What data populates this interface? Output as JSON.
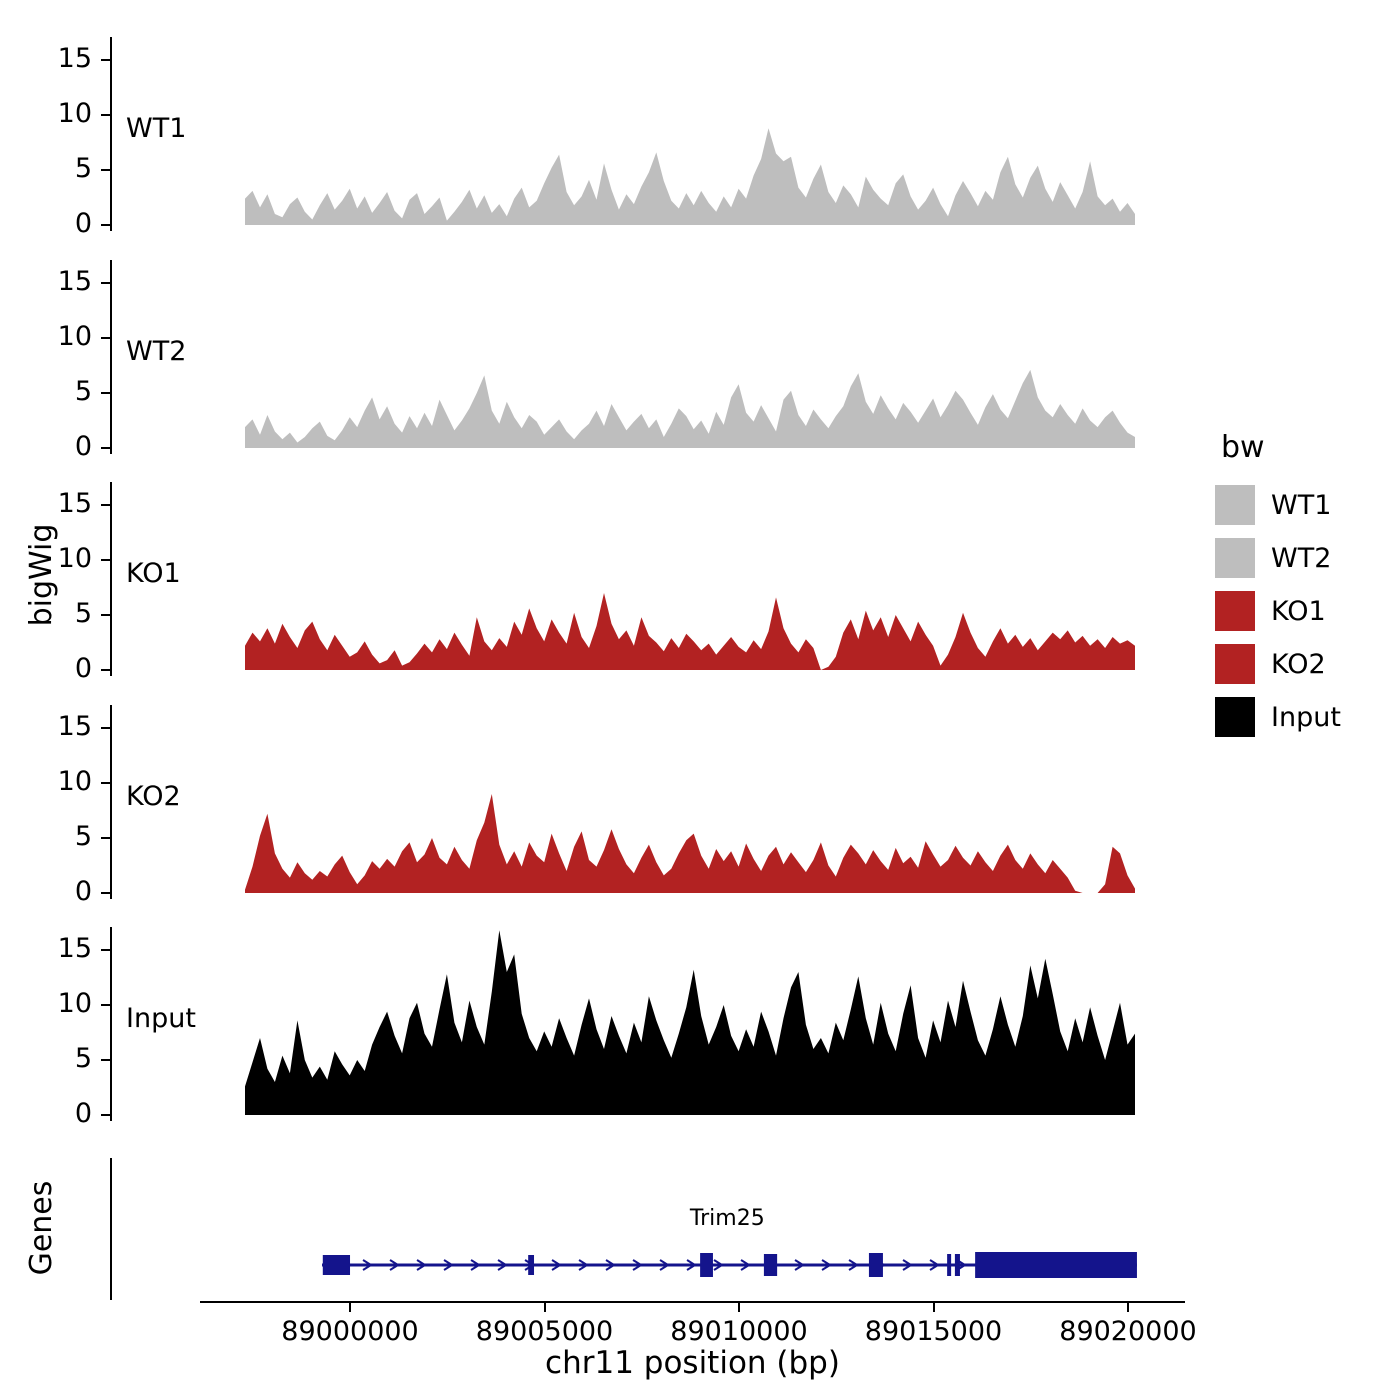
{
  "y_axis_title": "bigWig",
  "genes_axis_title": "Genes",
  "x_axis": {
    "title": "chr11 position (bp)",
    "ticks": [
      89000000,
      89005000,
      89010000,
      89015000,
      89020000
    ],
    "tick_labels": [
      "89000000",
      "89005000",
      "89010000",
      "89015000",
      "89020000"
    ]
  },
  "legend": {
    "title": "bw",
    "items": [
      {
        "label": "WT1",
        "color": "#BEBEBE"
      },
      {
        "label": "WT2",
        "color": "#BEBEBE"
      },
      {
        "label": "KO1",
        "color": "#B22222"
      },
      {
        "label": "KO2",
        "color": "#B22222"
      },
      {
        "label": "Input",
        "color": "#000000"
      }
    ]
  },
  "chart_data": {
    "type": "area",
    "title": "",
    "xlabel": "chr11 position (bp)",
    "ylabel": "bigWig",
    "x_range_bp": [
      88997300,
      89020180
    ],
    "y_ticks": [
      0,
      5,
      10,
      15
    ],
    "ylim": [
      0,
      17
    ],
    "grid": false,
    "legend_position": "right",
    "tracks": [
      {
        "name": "WT1",
        "color": "#BEBEBE",
        "values": [
          2.4,
          3.1,
          1.6,
          2.8,
          1.0,
          0.7,
          1.9,
          2.5,
          1.2,
          0.5,
          1.8,
          2.9,
          1.4,
          2.2,
          3.3,
          1.5,
          2.6,
          1.1,
          2.0,
          3.0,
          1.3,
          0.6,
          2.3,
          2.9,
          1.0,
          1.7,
          2.5,
          0.4,
          1.2,
          2.1,
          3.2,
          1.5,
          2.7,
          1.1,
          1.9,
          0.8,
          2.4,
          3.4,
          1.6,
          2.2,
          3.8,
          5.2,
          6.4,
          3.0,
          1.8,
          2.6,
          4.1,
          2.3,
          5.6,
          3.2,
          1.4,
          2.8,
          1.9,
          3.5,
          4.8,
          6.6,
          4.0,
          2.2,
          1.5,
          2.9,
          1.8,
          3.1,
          2.0,
          1.2,
          2.6,
          1.6,
          3.3,
          2.4,
          4.5,
          6.0,
          8.8,
          6.5,
          5.8,
          6.2,
          3.4,
          2.5,
          4.2,
          5.5,
          3.0,
          2.0,
          3.6,
          2.8,
          1.6,
          4.4,
          3.2,
          2.4,
          1.8,
          3.8,
          4.6,
          2.6,
          1.4,
          2.2,
          3.4,
          1.9,
          0.8,
          2.7,
          4.0,
          2.9,
          1.7,
          3.1,
          2.3,
          4.8,
          6.2,
          3.7,
          2.5,
          4.3,
          5.4,
          3.3,
          2.1,
          3.9,
          2.7,
          1.5,
          3.0,
          5.8,
          2.6,
          1.8,
          2.4,
          1.2,
          2.0,
          1.0
        ]
      },
      {
        "name": "WT2",
        "color": "#BEBEBE",
        "values": [
          1.9,
          2.6,
          1.2,
          3.0,
          1.5,
          0.8,
          1.4,
          0.5,
          1.0,
          1.8,
          2.4,
          1.1,
          0.7,
          1.6,
          2.8,
          1.9,
          3.4,
          4.6,
          2.6,
          3.8,
          2.2,
          1.4,
          2.9,
          1.8,
          3.2,
          2.0,
          4.4,
          3.0,
          1.6,
          2.5,
          3.6,
          5.0,
          6.6,
          3.4,
          2.2,
          4.2,
          2.8,
          1.8,
          3.0,
          2.4,
          1.2,
          1.9,
          2.6,
          1.5,
          0.8,
          1.6,
          2.2,
          3.4,
          2.0,
          4.0,
          2.8,
          1.6,
          2.4,
          3.1,
          1.8,
          2.6,
          1.0,
          2.2,
          3.6,
          2.9,
          1.7,
          2.5,
          1.3,
          3.3,
          2.1,
          4.6,
          5.8,
          3.2,
          2.4,
          3.9,
          2.7,
          1.5,
          4.4,
          5.2,
          3.0,
          2.0,
          3.5,
          2.6,
          1.8,
          2.9,
          3.8,
          5.6,
          6.8,
          4.2,
          3.1,
          4.8,
          3.6,
          2.6,
          4.1,
          3.3,
          2.3,
          3.4,
          4.5,
          2.8,
          3.9,
          5.2,
          4.4,
          3.2,
          2.1,
          3.7,
          4.9,
          3.5,
          2.7,
          4.3,
          5.9,
          7.1,
          4.6,
          3.4,
          2.8,
          4.0,
          3.0,
          2.2,
          3.6,
          2.5,
          1.9,
          2.8,
          3.4,
          2.3,
          1.4,
          1.0
        ]
      },
      {
        "name": "KO1",
        "color": "#B22222",
        "values": [
          2.2,
          3.4,
          2.6,
          3.8,
          2.4,
          4.2,
          3.0,
          2.0,
          3.6,
          4.4,
          2.8,
          1.8,
          3.2,
          2.2,
          1.2,
          1.6,
          2.6,
          1.4,
          0.6,
          0.9,
          1.8,
          0.4,
          0.7,
          1.5,
          2.4,
          1.6,
          2.8,
          1.9,
          3.4,
          2.3,
          1.3,
          4.8,
          2.6,
          1.8,
          2.9,
          2.1,
          4.4,
          3.2,
          5.6,
          3.8,
          2.6,
          4.6,
          3.4,
          2.4,
          5.2,
          3.0,
          2.0,
          4.0,
          7.0,
          4.2,
          2.8,
          3.6,
          2.2,
          4.8,
          3.1,
          2.5,
          1.7,
          2.9,
          2.0,
          3.3,
          2.6,
          1.8,
          2.4,
          1.4,
          2.2,
          3.0,
          2.1,
          1.6,
          2.7,
          1.9,
          3.5,
          6.6,
          3.8,
          2.4,
          1.6,
          2.8,
          2.0,
          0.0,
          0.3,
          1.2,
          3.4,
          4.6,
          2.8,
          5.4,
          3.6,
          4.8,
          3.0,
          5.0,
          3.8,
          2.6,
          4.4,
          3.2,
          2.2,
          0.4,
          1.4,
          3.0,
          5.2,
          3.4,
          2.0,
          1.2,
          2.6,
          3.8,
          2.4,
          3.2,
          2.1,
          2.9,
          1.8,
          2.6,
          3.4,
          2.8,
          3.6,
          2.5,
          3.1,
          2.2,
          2.8,
          2.0,
          3.0,
          2.4,
          2.7,
          2.2
        ]
      },
      {
        "name": "KO2",
        "color": "#B22222",
        "values": [
          0.3,
          2.4,
          5.2,
          7.2,
          3.6,
          2.2,
          1.4,
          2.8,
          1.8,
          1.2,
          2.0,
          1.5,
          2.6,
          3.4,
          1.9,
          0.8,
          1.6,
          2.9,
          2.2,
          3.1,
          2.4,
          3.8,
          4.6,
          2.8,
          3.5,
          5.0,
          3.2,
          2.6,
          4.2,
          3.0,
          2.2,
          4.8,
          6.4,
          9.0,
          4.4,
          2.6,
          3.8,
          2.4,
          4.6,
          3.4,
          2.8,
          5.4,
          3.6,
          2.0,
          4.2,
          5.6,
          3.0,
          2.4,
          3.9,
          5.8,
          4.0,
          2.6,
          1.8,
          3.2,
          4.4,
          2.8,
          1.6,
          2.2,
          3.6,
          4.8,
          5.4,
          3.4,
          2.2,
          4.0,
          2.9,
          3.8,
          2.4,
          4.5,
          3.1,
          2.0,
          3.4,
          4.2,
          2.6,
          3.7,
          2.8,
          1.9,
          3.0,
          4.6,
          2.5,
          1.5,
          3.2,
          4.4,
          3.6,
          2.6,
          3.9,
          2.9,
          2.1,
          4.1,
          2.7,
          3.3,
          2.3,
          4.7,
          3.5,
          2.4,
          3.0,
          4.3,
          3.2,
          2.5,
          3.8,
          2.8,
          2.0,
          3.4,
          4.4,
          3.0,
          2.2,
          3.6,
          2.6,
          1.8,
          3.0,
          2.2,
          1.4,
          0.2,
          0.0,
          0.0,
          0.0,
          0.8,
          4.2,
          3.6,
          1.6,
          0.4
        ]
      },
      {
        "name": "Input",
        "color": "#000000",
        "values": [
          2.6,
          4.8,
          7.0,
          4.2,
          3.0,
          5.4,
          3.8,
          8.6,
          5.0,
          3.4,
          4.4,
          3.2,
          5.8,
          4.6,
          3.6,
          5.0,
          4.0,
          6.4,
          8.0,
          9.4,
          7.2,
          5.6,
          8.8,
          10.2,
          7.4,
          6.2,
          9.6,
          12.8,
          8.4,
          6.6,
          10.4,
          8.0,
          6.4,
          11.2,
          16.8,
          13.0,
          14.6,
          9.2,
          7.0,
          5.8,
          7.6,
          6.2,
          8.8,
          7.0,
          5.4,
          8.2,
          10.6,
          7.8,
          6.0,
          9.0,
          7.2,
          5.6,
          8.4,
          6.6,
          10.8,
          8.6,
          6.8,
          5.2,
          7.4,
          9.8,
          13.2,
          9.0,
          6.4,
          8.0,
          10.0,
          7.2,
          5.8,
          7.8,
          6.2,
          9.4,
          7.6,
          5.4,
          8.8,
          11.6,
          13.0,
          8.2,
          6.0,
          7.0,
          5.6,
          8.4,
          6.8,
          9.6,
          12.6,
          8.8,
          6.4,
          10.2,
          7.4,
          5.8,
          9.2,
          11.8,
          7.0,
          5.2,
          8.6,
          6.6,
          10.4,
          8.0,
          12.2,
          9.4,
          6.8,
          5.4,
          7.8,
          10.8,
          8.2,
          6.2,
          9.0,
          13.6,
          10.6,
          14.2,
          11.0,
          7.6,
          5.8,
          8.8,
          6.6,
          9.8,
          7.2,
          5.0,
          7.6,
          10.2,
          6.4,
          7.4
        ]
      }
    ],
    "gene_track": {
      "gene_name": "Trim25",
      "color": "#14148C",
      "strand": "+",
      "start_bp": 88999280,
      "end_bp": 89020230,
      "exons_bp": [
        [
          88999300,
          89000000
        ],
        [
          89004580,
          89004730
        ],
        [
          89009000,
          89009330
        ],
        [
          89010640,
          89010980
        ],
        [
          89013340,
          89013700
        ],
        [
          89015350,
          89015450
        ],
        [
          89015550,
          89015680
        ],
        [
          89016070,
          89020230
        ]
      ]
    }
  }
}
